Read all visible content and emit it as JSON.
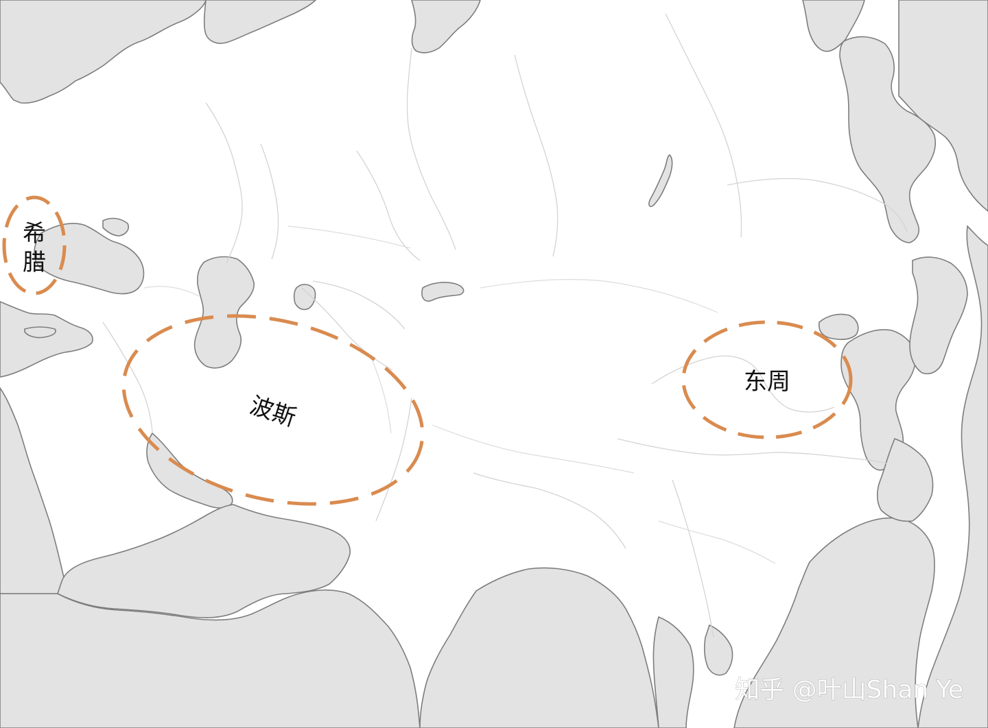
{
  "colors": {
    "water": "#e3e3e3",
    "land": "#ffffff",
    "coastline": "#7d7d7d",
    "region_outline": "#d98b4f"
  },
  "regions": [
    {
      "id": "greece",
      "label_lines": [
        "希",
        "腊"
      ]
    },
    {
      "id": "persia",
      "label_lines": [
        "波斯"
      ]
    },
    {
      "id": "eastern-zhou",
      "label_lines": [
        "东周"
      ]
    }
  ],
  "watermark": {
    "text": "知乎 @叶山Shan Ye"
  }
}
